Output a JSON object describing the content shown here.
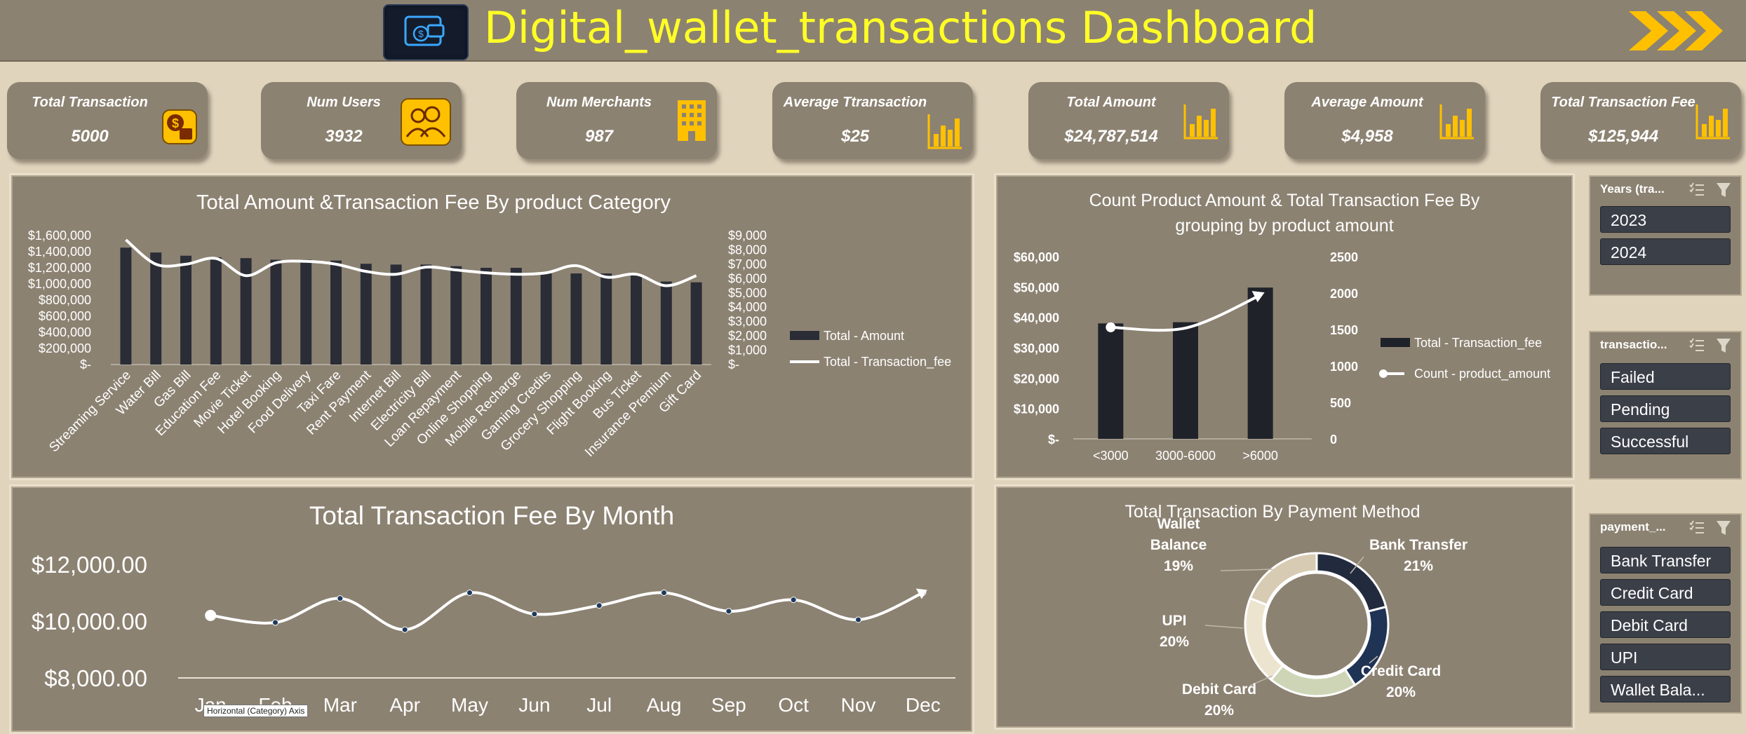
{
  "header": {
    "title": "Digital_wallet_transactions Dashboard"
  },
  "kpis": [
    {
      "label": "Total Transaction",
      "value": "5000",
      "icon": "money-icon"
    },
    {
      "label": "Num Users",
      "value": "3932",
      "icon": "users-icon"
    },
    {
      "label": "Num Merchants",
      "value": "987",
      "icon": "building-icon"
    },
    {
      "label": "Average Ttransaction",
      "value": "$25",
      "icon": "bar-chart-icon"
    },
    {
      "label": "Total Amount",
      "value": "$24,787,514",
      "icon": "bar-chart-icon"
    },
    {
      "label": "Average  Amount",
      "value": "$4,958",
      "icon": "bar-chart-icon"
    },
    {
      "label": "Total  Transaction Fee",
      "value": "$125,944",
      "icon": "bar-chart-icon"
    }
  ],
  "slicers": [
    {
      "header": "Years (tra...",
      "items": [
        "2023",
        "2024"
      ]
    },
    {
      "header": "transactio...",
      "items": [
        "Failed",
        "Pending",
        "Successful"
      ]
    },
    {
      "header": "payment_...",
      "items": [
        "Bank Transfer",
        "Credit Card",
        "Debit Card",
        "UPI",
        "Wallet Bala..."
      ]
    }
  ],
  "tooltip": "Horizontal (Category) Axis",
  "colors": {
    "accent": "#ffc000",
    "title": "#ffff26",
    "bar": "#2a2d36",
    "panel": "#8c8272"
  },
  "chart_data": [
    {
      "type": "bar",
      "title": "Total Amount &Transaction Fee By  product Category",
      "categories": [
        "Streaming Service",
        "Water Bill",
        "Gas Bill",
        "Education Fee",
        "Movie Ticket",
        "Hotel Booking",
        "Food Delivery",
        "Taxi Fare",
        "Rent Payment",
        "Internet Bill",
        "Electricity Bill",
        "Loan Repayment",
        "Online Shopping",
        "Mobile Recharge",
        "Gaming Credits",
        "Grocery Shopping",
        "Flight Booking",
        "Bus Ticket",
        "Insurance Premium",
        "Gift Card"
      ],
      "series": [
        {
          "name": "Total - Amount",
          "type": "bar",
          "axis": "left",
          "values": [
            1450000,
            1390000,
            1350000,
            1330000,
            1320000,
            1300000,
            1300000,
            1290000,
            1250000,
            1240000,
            1240000,
            1220000,
            1200000,
            1200000,
            1130000,
            1130000,
            1130000,
            1110000,
            1030000,
            1020000
          ]
        },
        {
          "name": "Total - Transaction_fee",
          "type": "line",
          "axis": "right",
          "values": [
            8700,
            7000,
            7000,
            7400,
            6200,
            7100,
            7200,
            7000,
            6500,
            6300,
            6800,
            6600,
            6400,
            6300,
            6400,
            6900,
            6100,
            6300,
            5500,
            6200
          ]
        }
      ],
      "yticks_left": [
        "$-",
        "$200,000",
        "$400,000",
        "$600,000",
        "$800,000",
        "$1,000,000",
        "$1,200,000",
        "$1,400,000",
        "$1,600,000"
      ],
      "yticks_right": [
        "$-",
        "$1,000",
        "$2,000",
        "$3,000",
        "$4,000",
        "$5,000",
        "$6,000",
        "$7,000",
        "$8,000",
        "$9,000"
      ],
      "ylim_left": [
        0,
        1600000
      ],
      "ylim_right": [
        0,
        9000
      ],
      "legend": "right",
      "grid": false
    },
    {
      "type": "bar",
      "title": "Count Product Amount & Total Transaction Fee By grouping by product amount",
      "categories": [
        "<3000",
        "3000-6000",
        ">6000"
      ],
      "series": [
        {
          "name": "Total - Transaction_fee",
          "type": "bar",
          "axis": "left",
          "values": [
            38000,
            38400,
            49800
          ]
        },
        {
          "name": "Count - product_amount",
          "type": "line",
          "axis": "right",
          "values": [
            1530,
            1520,
            1970
          ]
        }
      ],
      "yticks_left": [
        "$-",
        "$10,000",
        "$20,000",
        "$30,000",
        "$40,000",
        "$50,000",
        "$60,000"
      ],
      "yticks_right": [
        "0",
        "500",
        "1000",
        "1500",
        "2000",
        "2500"
      ],
      "ylim_left": [
        0,
        60000
      ],
      "ylim_right": [
        0,
        2500
      ],
      "legend": "right",
      "grid": false
    },
    {
      "type": "line",
      "title": "Total Transaction Fee By Month",
      "categories": [
        "Jan",
        "Feb",
        "Mar",
        "Apr",
        "May",
        "Jun",
        "Jul",
        "Aug",
        "Sep",
        "Oct",
        "Nov",
        "Dec"
      ],
      "values": [
        10200,
        9950,
        10800,
        9700,
        11000,
        10250,
        10550,
        11000,
        10350,
        10750,
        10050,
        11000
      ],
      "yticks": [
        "$8,000.00",
        "$10,000.00",
        "$12,000.00"
      ],
      "ylim": [
        8000,
        12000
      ],
      "grid": false
    },
    {
      "type": "pie",
      "title": "Total Transaction By Payment Method",
      "labels": [
        "Bank Transfer",
        "Credit Card",
        "Debit Card",
        "UPI",
        "Wallet Balance"
      ],
      "values": [
        21,
        20,
        20,
        20,
        19
      ],
      "value_labels": [
        "21%",
        "20%",
        "20%",
        "20%",
        "19%"
      ],
      "colors": [
        "#222a3d",
        "#1f3354",
        "#cdd5b6",
        "#ede4d0",
        "#d8cbb3"
      ]
    }
  ]
}
